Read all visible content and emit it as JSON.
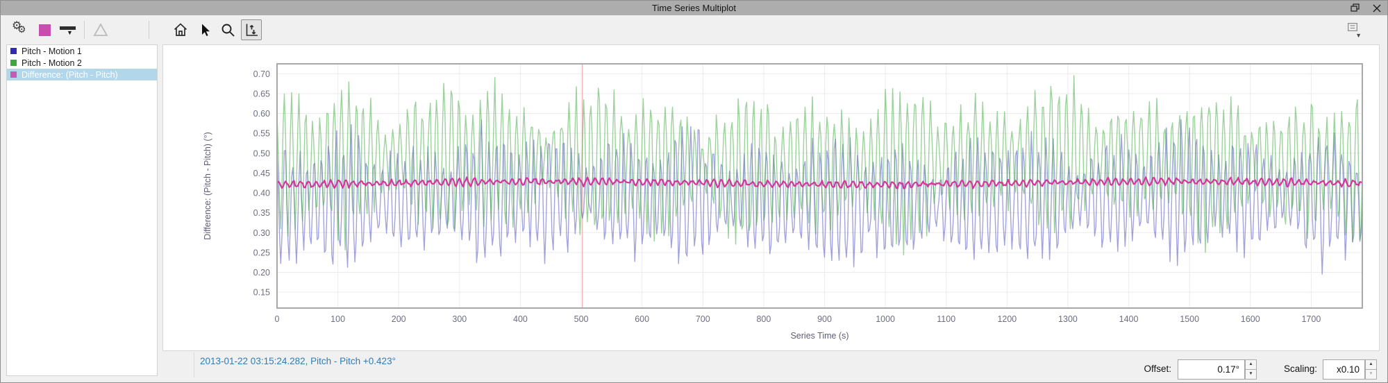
{
  "window": {
    "title": "Time Series Multiplot"
  },
  "titlebar": {
    "icons": [
      "float-window-icon",
      "close-icon"
    ]
  },
  "toolbar": {
    "left_icons": [
      "settings-gears-icon",
      "series-color-swatch",
      "line-style-icon",
      "marker-triangle-icon"
    ],
    "nav_icons": [
      "home-icon",
      "pointer-icon",
      "zoom-icon",
      "axis-offset-tool-icon"
    ],
    "active_tool": "axis-offset-tool",
    "right_icons": [
      "plot-options-icon"
    ],
    "swatch_color": "#c84dae"
  },
  "legend": {
    "selection_color": "#b2d7ea",
    "items": [
      {
        "label": "Pitch - Motion 1",
        "color": "#2f2fae",
        "selected": false
      },
      {
        "label": "Pitch - Motion 2",
        "color": "#3ea83e",
        "selected": false
      },
      {
        "label": "Difference: (Pitch - Pitch)",
        "color": "#c95ab2",
        "selected": true
      }
    ]
  },
  "statusbar": {
    "readout": "2013-01-22 03:15:24.282, Pitch - Pitch +0.423°",
    "readout_color": "#2f7cb3",
    "offset_label": "Offset:",
    "offset_value": "0.17°",
    "scaling_label": "Scaling:",
    "scaling_value": "x0.10"
  },
  "chart_data": {
    "type": "line",
    "title": "",
    "xlabel": "Series Time (s)",
    "ylabel": "Difference: (Pitch - Pitch) (°)",
    "xlim": [
      0,
      1784
    ],
    "ylim": [
      0.11,
      0.725
    ],
    "xticks": [
      0,
      100,
      200,
      300,
      400,
      500,
      600,
      700,
      800,
      900,
      1000,
      1100,
      1200,
      1300,
      1400,
      1500,
      1600,
      1700
    ],
    "yticks": [
      0.7,
      0.65,
      0.6,
      0.55,
      0.5,
      0.45,
      0.4,
      0.35,
      0.3,
      0.25,
      0.2,
      0.15
    ],
    "grid": true,
    "grid_color": "#edeaea",
    "cursor_x": 502,
    "cursor_color": "#f4b4b9",
    "legend_position": "left-panel",
    "series": [
      {
        "name": "Pitch - Motion 1",
        "color": "#4848be",
        "opacity": 0.5,
        "width": 1.4,
        "mean": 0.385,
        "typical_min": 0.16,
        "typical_max": 0.57,
        "character": "dense quasi-periodic oscillation, period ~12 s, amplitude-modulated"
      },
      {
        "name": "Pitch - Motion 2",
        "color": "#3aa83a",
        "opacity": 0.5,
        "width": 1.4,
        "mean": 0.475,
        "typical_min": 0.22,
        "typical_max": 0.73,
        "character": "dense quasi-periodic oscillation, period ~12 s, amplitude-modulated"
      },
      {
        "name": "Difference: (Pitch - Pitch)",
        "color": "#d6359c",
        "opacity": 1,
        "width": 2.2,
        "mean": 0.425,
        "typical_min": 0.405,
        "typical_max": 0.45,
        "character": "nearly flat band around 0.425 with small ripples"
      }
    ],
    "generator": {
      "dt": 2,
      "n": 893,
      "series_params": [
        {
          "seed": 101,
          "mean": 0.385,
          "amp": 0.165,
          "period": 12.4,
          "modP1": 36.5,
          "modP2": 89.0,
          "noise": 0.02,
          "wander": 0.012
        },
        {
          "seed": 202,
          "mean": 0.475,
          "amp": 0.185,
          "period": 12.1,
          "modP1": 41.0,
          "modP2": 77.0,
          "noise": 0.02,
          "wander": 0.012
        },
        {
          "seed": 303,
          "mean": 0.425,
          "amp": 0.009,
          "period": 12.6,
          "modP1": 33.0,
          "modP2": 71.0,
          "noise": 0.006,
          "wander": 0.004
        }
      ]
    }
  }
}
